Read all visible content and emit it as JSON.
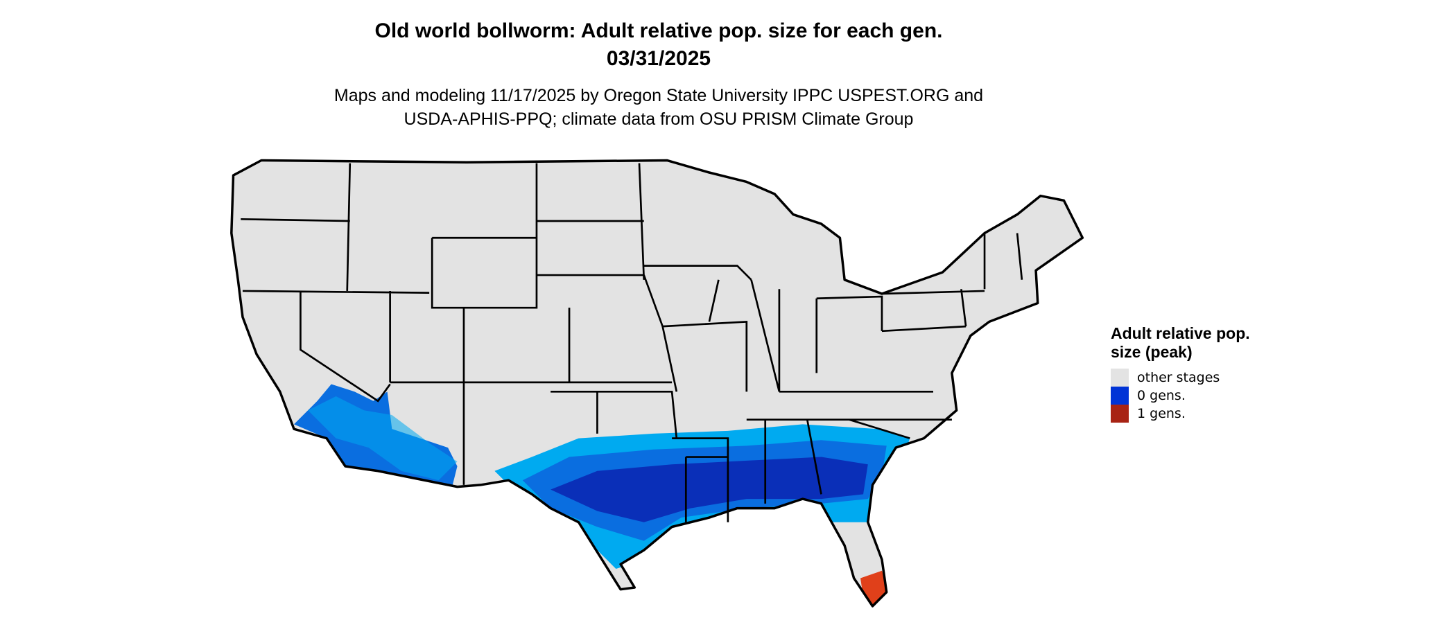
{
  "title": {
    "line1": "Old world bollworm: Adult relative pop. size for each gen.",
    "line2": "03/31/2025"
  },
  "subtitle": {
    "line1": "Maps and modeling 11/17/2025 by Oregon State University IPPC USPEST.ORG and",
    "line2": "USDA-APHIS-PPQ; climate data from OSU PRISM Climate Group"
  },
  "legend": {
    "title": "Adult relative pop. size (peak)",
    "items": [
      {
        "label": "other stages",
        "color": "#e3e3e3"
      },
      {
        "label": "0 gens.",
        "color": "#0033d6"
      },
      {
        "label": "1 gens.",
        "color": "#a82314"
      }
    ]
  },
  "colors": {
    "outer_band": "#00aaf0",
    "mid_band": "#0a6ee0",
    "core": "#0a2fb8",
    "state_fill": "#e3e3e3",
    "tip_red": "#e0401a"
  }
}
